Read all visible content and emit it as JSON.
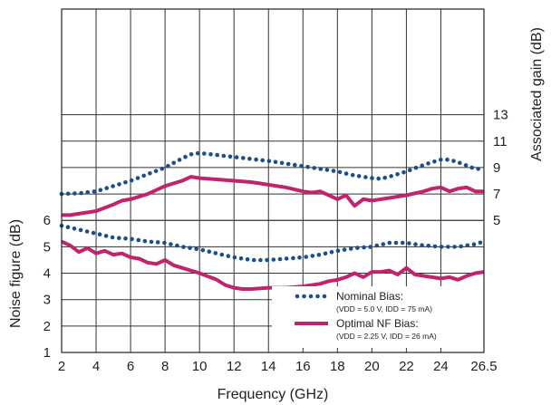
{
  "chart_data": {
    "type": "line",
    "xlabel": "Frequency (GHz)",
    "ylabel_left": "Noise figure (dB)",
    "ylabel_right": "Associated gain (dB)",
    "xlim": [
      2,
      26.5
    ],
    "x_ticks": [
      "2",
      "4",
      "6",
      "8",
      "10",
      "12",
      "14",
      "16",
      "18",
      "20",
      "22",
      "24",
      "26.5"
    ],
    "x_tick_values": [
      2,
      4,
      6,
      8,
      10,
      12,
      14,
      16,
      18,
      20,
      22,
      24,
      26.5
    ],
    "ylim_left": [
      1,
      14
    ],
    "y_left_ticks": [
      "1",
      "2",
      "3",
      "4",
      "5",
      "6"
    ],
    "y_left_tick_values": [
      1,
      2,
      3,
      4,
      5,
      6
    ],
    "ylim_right": [
      -5,
      21
    ],
    "y_right_ticks": [
      "5",
      "7",
      "9",
      "11",
      "13"
    ],
    "y_right_tick_values": [
      5,
      7,
      9,
      11,
      13
    ],
    "grid": true,
    "legend": {
      "placement": "bottom-right",
      "entries": [
        {
          "name": "Nominal Bias:",
          "detail": "(VDD = 5.0 V,  IDD = 75 mA)",
          "style": "dotted",
          "color": "#1a4f8b"
        },
        {
          "name": "Optimal NF Bias:",
          "detail": "(VDD = 2.25 V,  IDD = 26 mA)",
          "style": "solid",
          "color": "#c0246e"
        }
      ]
    },
    "series": [
      {
        "name": "Nominal Bias:",
        "quantity": "Associated gain (dB)",
        "axis": "right",
        "style": "dotted",
        "color": "#1a4f8b",
        "x": [
          2,
          3,
          4,
          5,
          6,
          7,
          8,
          9,
          9.5,
          10,
          11,
          12,
          13,
          14,
          15,
          16,
          17,
          18,
          19,
          20,
          20.5,
          21,
          22,
          23,
          24,
          24.5,
          25,
          26,
          26.5
        ],
        "y": [
          7.0,
          7.05,
          7.2,
          7.6,
          8.0,
          8.5,
          9.0,
          9.7,
          10.0,
          10.1,
          9.95,
          9.8,
          9.65,
          9.5,
          9.3,
          9.1,
          8.9,
          8.7,
          8.4,
          8.2,
          8.15,
          8.3,
          8.7,
          9.2,
          9.6,
          9.6,
          9.4,
          8.9,
          8.9
        ]
      },
      {
        "name": "Optimal NF Bias:",
        "quantity": "Associated gain (dB)",
        "axis": "right",
        "style": "solid",
        "color": "#c0246e",
        "x": [
          2,
          2.5,
          3,
          4,
          5,
          5.5,
          6,
          7,
          8,
          9,
          9.5,
          10,
          11,
          12,
          13,
          14,
          15,
          16,
          16.5,
          17,
          17.5,
          18,
          18.5,
          19,
          19.5,
          20,
          21,
          22,
          23,
          23.5,
          24,
          24.5,
          25,
          25.5,
          26,
          26.5
        ],
        "y": [
          5.4,
          5.4,
          5.5,
          5.7,
          6.2,
          6.5,
          6.6,
          7.0,
          7.6,
          8.0,
          8.3,
          8.2,
          8.1,
          8.0,
          7.9,
          7.7,
          7.5,
          7.2,
          7.1,
          7.2,
          6.9,
          6.6,
          6.9,
          6.1,
          6.6,
          6.5,
          6.7,
          6.9,
          7.2,
          7.4,
          7.5,
          7.2,
          7.4,
          7.5,
          7.2,
          7.2
        ]
      },
      {
        "name": "Nominal Bias:",
        "quantity": "Noise figure (dB)",
        "axis": "left",
        "style": "dotted",
        "color": "#1a4f8b",
        "x": [
          2,
          3,
          4,
          5,
          6,
          7,
          8,
          9,
          10,
          11,
          12,
          13,
          14,
          15,
          16,
          17,
          18,
          19,
          20,
          21,
          22,
          23,
          24,
          25,
          26,
          26.5
        ],
        "y": [
          5.8,
          5.65,
          5.5,
          5.35,
          5.3,
          5.2,
          5.15,
          5.0,
          4.9,
          4.75,
          4.6,
          4.5,
          4.5,
          4.55,
          4.6,
          4.7,
          4.85,
          4.95,
          5.0,
          5.15,
          5.15,
          5.05,
          5.0,
          5.0,
          5.1,
          5.2
        ]
      },
      {
        "name": "Optimal NF Bias:",
        "quantity": "Noise figure (dB)",
        "axis": "left",
        "style": "solid",
        "color": "#c0246e",
        "x": [
          2,
          2.5,
          3,
          3.5,
          4,
          4.5,
          5,
          5.5,
          6,
          6.5,
          7,
          7.5,
          8,
          8.5,
          9,
          10,
          11,
          11.5,
          12,
          12.5,
          13,
          14,
          15,
          16,
          17,
          17.5,
          18,
          18.5,
          19,
          19.5,
          20,
          20.5,
          21,
          21.5,
          22,
          22.5,
          23,
          24,
          24.5,
          25,
          25.5,
          26,
          26.5
        ],
        "y": [
          5.2,
          5.05,
          4.8,
          4.95,
          4.75,
          4.85,
          4.7,
          4.75,
          4.6,
          4.55,
          4.4,
          4.35,
          4.5,
          4.3,
          4.2,
          4.0,
          3.75,
          3.55,
          3.45,
          3.4,
          3.4,
          3.45,
          3.45,
          3.5,
          3.6,
          3.7,
          3.75,
          3.85,
          4.0,
          3.85,
          4.05,
          4.05,
          4.1,
          3.95,
          4.2,
          3.95,
          3.9,
          3.8,
          3.85,
          3.75,
          3.9,
          4.0,
          4.05
        ]
      }
    ]
  }
}
